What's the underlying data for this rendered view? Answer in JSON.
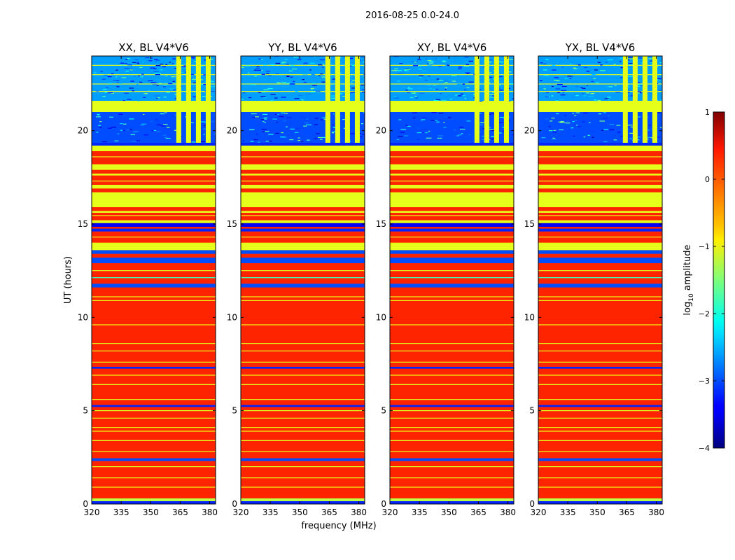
{
  "chart_data": {
    "type": "heatmap",
    "suptitle": "2016-08-25 0.0-24.0",
    "xlabel": "frequency (MHz)",
    "ylabel": "UT (hours)",
    "xlim": [
      320,
      383
    ],
    "ylim": [
      0,
      24
    ],
    "xticks": [
      320,
      335,
      350,
      365,
      380
    ],
    "yticks": [
      0,
      5,
      10,
      15,
      20
    ],
    "panels": [
      {
        "title": "XX, BL V4*V6"
      },
      {
        "title": "YY, BL V4*V6"
      },
      {
        "title": "XY, BL V4*V6"
      },
      {
        "title": "YX, BL V4*V6"
      }
    ],
    "colorbar": {
      "label": "log10 amplitude",
      "label_main": "log",
      "label_sub": "10",
      "label_rest": " amplitude",
      "colormap": "jet",
      "range": [
        -4,
        1
      ],
      "ticks": [
        1,
        0,
        -1,
        -2,
        -3,
        -4
      ],
      "tick_labels": [
        "1",
        "0",
        "−1",
        "−2",
        "−3",
        "−4"
      ]
    },
    "time_bands": [
      {
        "t0": 0.0,
        "t1": 0.15,
        "value": -3.2
      },
      {
        "t0": 0.15,
        "t1": 0.3,
        "value": -1.2
      },
      {
        "t0": 2.3,
        "t1": 2.45,
        "value": -3.0
      },
      {
        "t0": 5.2,
        "t1": 5.3,
        "value": -3.2
      },
      {
        "t0": 7.25,
        "t1": 7.35,
        "value": -3.2
      },
      {
        "t0": 11.6,
        "t1": 11.8,
        "value": -3.0
      },
      {
        "t0": 12.1,
        "t1": 12.15,
        "value": -1.8
      },
      {
        "t0": 12.9,
        "t1": 13.2,
        "value": -3.0
      },
      {
        "t0": 13.4,
        "t1": 13.6,
        "value": -3.0
      },
      {
        "t0": 13.6,
        "t1": 14.0,
        "value": -1.0
      },
      {
        "t0": 14.6,
        "t1": 14.75,
        "value": -3.2
      },
      {
        "t0": 14.85,
        "t1": 15.05,
        "value": -3.4
      },
      {
        "t0": 15.05,
        "t1": 15.2,
        "value": -1.0
      },
      {
        "t0": 15.6,
        "t1": 15.7,
        "value": -1.0
      },
      {
        "t0": 15.9,
        "t1": 16.7,
        "value": -1.0
      },
      {
        "t0": 16.9,
        "t1": 17.1,
        "value": -1.0
      },
      {
        "t0": 17.6,
        "t1": 17.7,
        "value": -1.0
      },
      {
        "t0": 17.9,
        "t1": 18.2,
        "value": -1.0
      },
      {
        "t0": 18.9,
        "t1": 19.2,
        "value": -1.0
      },
      {
        "t0": 19.2,
        "t1": 19.35,
        "value": -3.2
      },
      {
        "t0": 19.35,
        "t1": 21.0,
        "value": -3.0
      },
      {
        "t0": 21.0,
        "t1": 21.6,
        "value": -1.0
      },
      {
        "t0": 21.6,
        "t1": 24.0,
        "value": -2.6
      }
    ],
    "thin_lines": [
      {
        "t": 0.9,
        "value": -1.0
      },
      {
        "t": 1.4,
        "value": -1.0
      },
      {
        "t": 2.0,
        "value": -1.0
      },
      {
        "t": 2.8,
        "value": -1.0
      },
      {
        "t": 3.4,
        "value": -1.0
      },
      {
        "t": 3.9,
        "value": -1.0
      },
      {
        "t": 4.1,
        "value": -1.0
      },
      {
        "t": 4.6,
        "value": -1.0
      },
      {
        "t": 5.0,
        "value": -1.0
      },
      {
        "t": 5.6,
        "value": -1.0
      },
      {
        "t": 6.4,
        "value": -1.0
      },
      {
        "t": 6.9,
        "value": -1.0
      },
      {
        "t": 7.6,
        "value": -1.0
      },
      {
        "t": 8.2,
        "value": -1.0
      },
      {
        "t": 8.6,
        "value": -1.0
      },
      {
        "t": 9.6,
        "value": -1.0
      },
      {
        "t": 10.9,
        "value": -1.0
      },
      {
        "t": 11.1,
        "value": -1.0
      },
      {
        "t": 12.5,
        "value": -1.0
      },
      {
        "t": 14.3,
        "value": -1.0
      },
      {
        "t": 15.45,
        "value": -1.0
      },
      {
        "t": 17.3,
        "value": -1.0
      },
      {
        "t": 18.6,
        "value": -1.0
      },
      {
        "t": 22.1,
        "value": -1.0
      },
      {
        "t": 22.5,
        "value": -1.0
      },
      {
        "t": 23.0,
        "value": -1.0
      },
      {
        "t": 23.5,
        "value": -1.0
      }
    ],
    "default_value": 0.2,
    "rfi_columns": [
      {
        "f0": 363,
        "f1": 365.5
      },
      {
        "f0": 368,
        "f1": 370.5
      },
      {
        "f0": 373,
        "f1": 375.5
      },
      {
        "f0": 378,
        "f1": 380.5
      }
    ],
    "rfi_time_range": [
      19.35,
      24.0
    ],
    "rfi_value": -1.0
  }
}
